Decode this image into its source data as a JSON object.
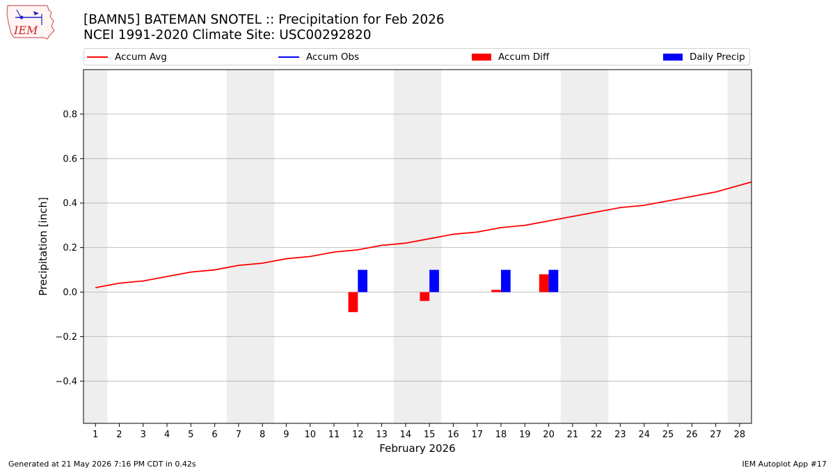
{
  "header": {
    "title_line1": "[BAMN5] BATEMAN SNOTEL :: Precipitation for Feb 2026",
    "title_line2": "NCEI 1991-2020 Climate Site: USC00292820",
    "logo_text": "IEM"
  },
  "legend": {
    "placement": "top",
    "items": [
      {
        "label": "Accum Avg",
        "color": "#ff0000",
        "kind": "line"
      },
      {
        "label": "Accum Obs",
        "color": "#0000ff",
        "kind": "line"
      },
      {
        "label": "Accum Diff",
        "color": "#ff0000",
        "kind": "box"
      },
      {
        "label": "Daily Precip",
        "color": "#0000ff",
        "kind": "box"
      }
    ]
  },
  "chart_data": {
    "type": "bar",
    "xlabel": "February 2026",
    "ylabel": "Precipitation [inch]",
    "xlim": [
      0.5,
      28.5
    ],
    "ylim": [
      -0.59,
      1.0
    ],
    "x": [
      1,
      2,
      3,
      4,
      5,
      6,
      7,
      8,
      9,
      10,
      11,
      12,
      13,
      14,
      15,
      16,
      17,
      18,
      19,
      20,
      21,
      22,
      23,
      24,
      25,
      26,
      27,
      28
    ],
    "x_tick_labels": [
      "1",
      "2",
      "3",
      "4",
      "5",
      "6",
      "7",
      "8",
      "9",
      "10",
      "11",
      "12",
      "13",
      "14",
      "15",
      "16",
      "17",
      "18",
      "19",
      "20",
      "21",
      "22",
      "23",
      "24",
      "25",
      "26",
      "27",
      "28"
    ],
    "y_ticks": [
      -0.4,
      -0.2,
      0.0,
      0.2,
      0.4,
      0.6,
      0.8
    ],
    "y_tick_labels": [
      "−0.4",
      "−0.2",
      "0.0",
      "0.2",
      "0.4",
      "0.6",
      "0.8"
    ],
    "grid": "y",
    "weekend_shading": [
      [
        0.5,
        1.5
      ],
      [
        6.5,
        8.5
      ],
      [
        13.5,
        15.5
      ],
      [
        20.5,
        22.5
      ],
      [
        27.5,
        28.5
      ]
    ],
    "shading_color": "#eeeeee",
    "series": [
      {
        "name": "Accum Avg",
        "kind": "line",
        "color": "#ff0000",
        "values": [
          0.02,
          0.04,
          0.05,
          0.07,
          0.09,
          0.1,
          0.12,
          0.13,
          0.15,
          0.16,
          0.18,
          0.19,
          0.21,
          0.22,
          0.24,
          0.26,
          0.27,
          0.29,
          0.3,
          0.32,
          0.34,
          0.36,
          0.38,
          0.39,
          0.41,
          0.43,
          0.45,
          0.48
        ]
      },
      {
        "name": "Accum Diff",
        "kind": "bar",
        "color": "#ff0000",
        "offset": -0.2,
        "points": [
          [
            12,
            -0.09
          ],
          [
            15,
            -0.04
          ],
          [
            18,
            0.01
          ],
          [
            20,
            0.08
          ]
        ]
      },
      {
        "name": "Daily Precip",
        "kind": "bar",
        "color": "#0000ff",
        "offset": 0.2,
        "points": [
          [
            12,
            0.1
          ],
          [
            15,
            0.1
          ],
          [
            18,
            0.1
          ],
          [
            20,
            0.1
          ]
        ]
      }
    ]
  },
  "footer": {
    "left": "Generated at 21 May 2026 7:16 PM CDT in 0.42s",
    "right": "IEM Autoplot App #17"
  }
}
